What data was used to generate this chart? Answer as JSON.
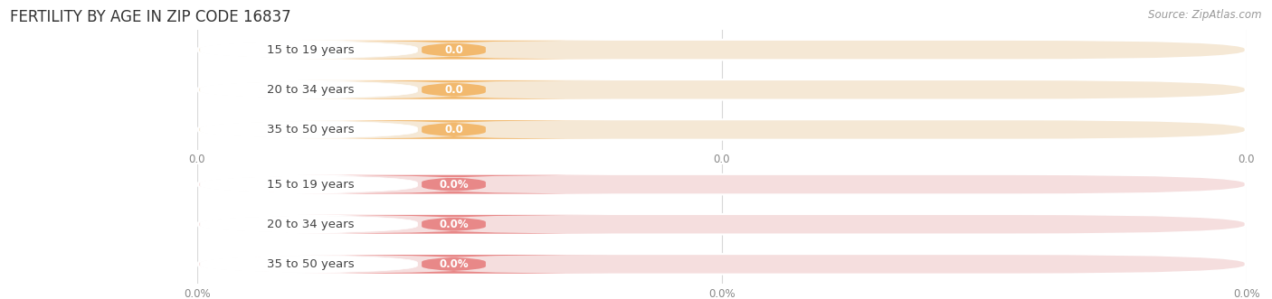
{
  "title": "FERTILITY BY AGE IN ZIP CODE 16837",
  "source": "Source: ZipAtlas.com",
  "top_group": {
    "labels": [
      "15 to 19 years",
      "20 to 34 years",
      "35 to 50 years"
    ],
    "values": [
      0.0,
      0.0,
      0.0
    ],
    "value_labels": [
      "0.0",
      "0.0",
      "0.0"
    ],
    "bar_bg_color": "#f5e8d5",
    "bar_pill_color": "#f2b96e",
    "label_color": "#444444",
    "value_text_color": "#ffffff",
    "axis_tick_labels": [
      "0.0",
      "0.0",
      "0.0"
    ]
  },
  "bottom_group": {
    "labels": [
      "15 to 19 years",
      "20 to 34 years",
      "35 to 50 years"
    ],
    "values": [
      0.0,
      0.0,
      0.0
    ],
    "value_labels": [
      "0.0%",
      "0.0%",
      "0.0%"
    ],
    "bar_bg_color": "#f5dede",
    "bar_pill_color": "#e88888",
    "label_color": "#444444",
    "value_text_color": "#ffffff",
    "axis_tick_labels": [
      "0.0%",
      "0.0%",
      "0.0%"
    ]
  },
  "bg_color": "#ffffff",
  "grid_color": "#d8d8d8",
  "title_fontsize": 12,
  "source_fontsize": 8.5,
  "label_fontsize": 9.5,
  "value_fontsize": 8.5,
  "tick_fontsize": 8.5
}
